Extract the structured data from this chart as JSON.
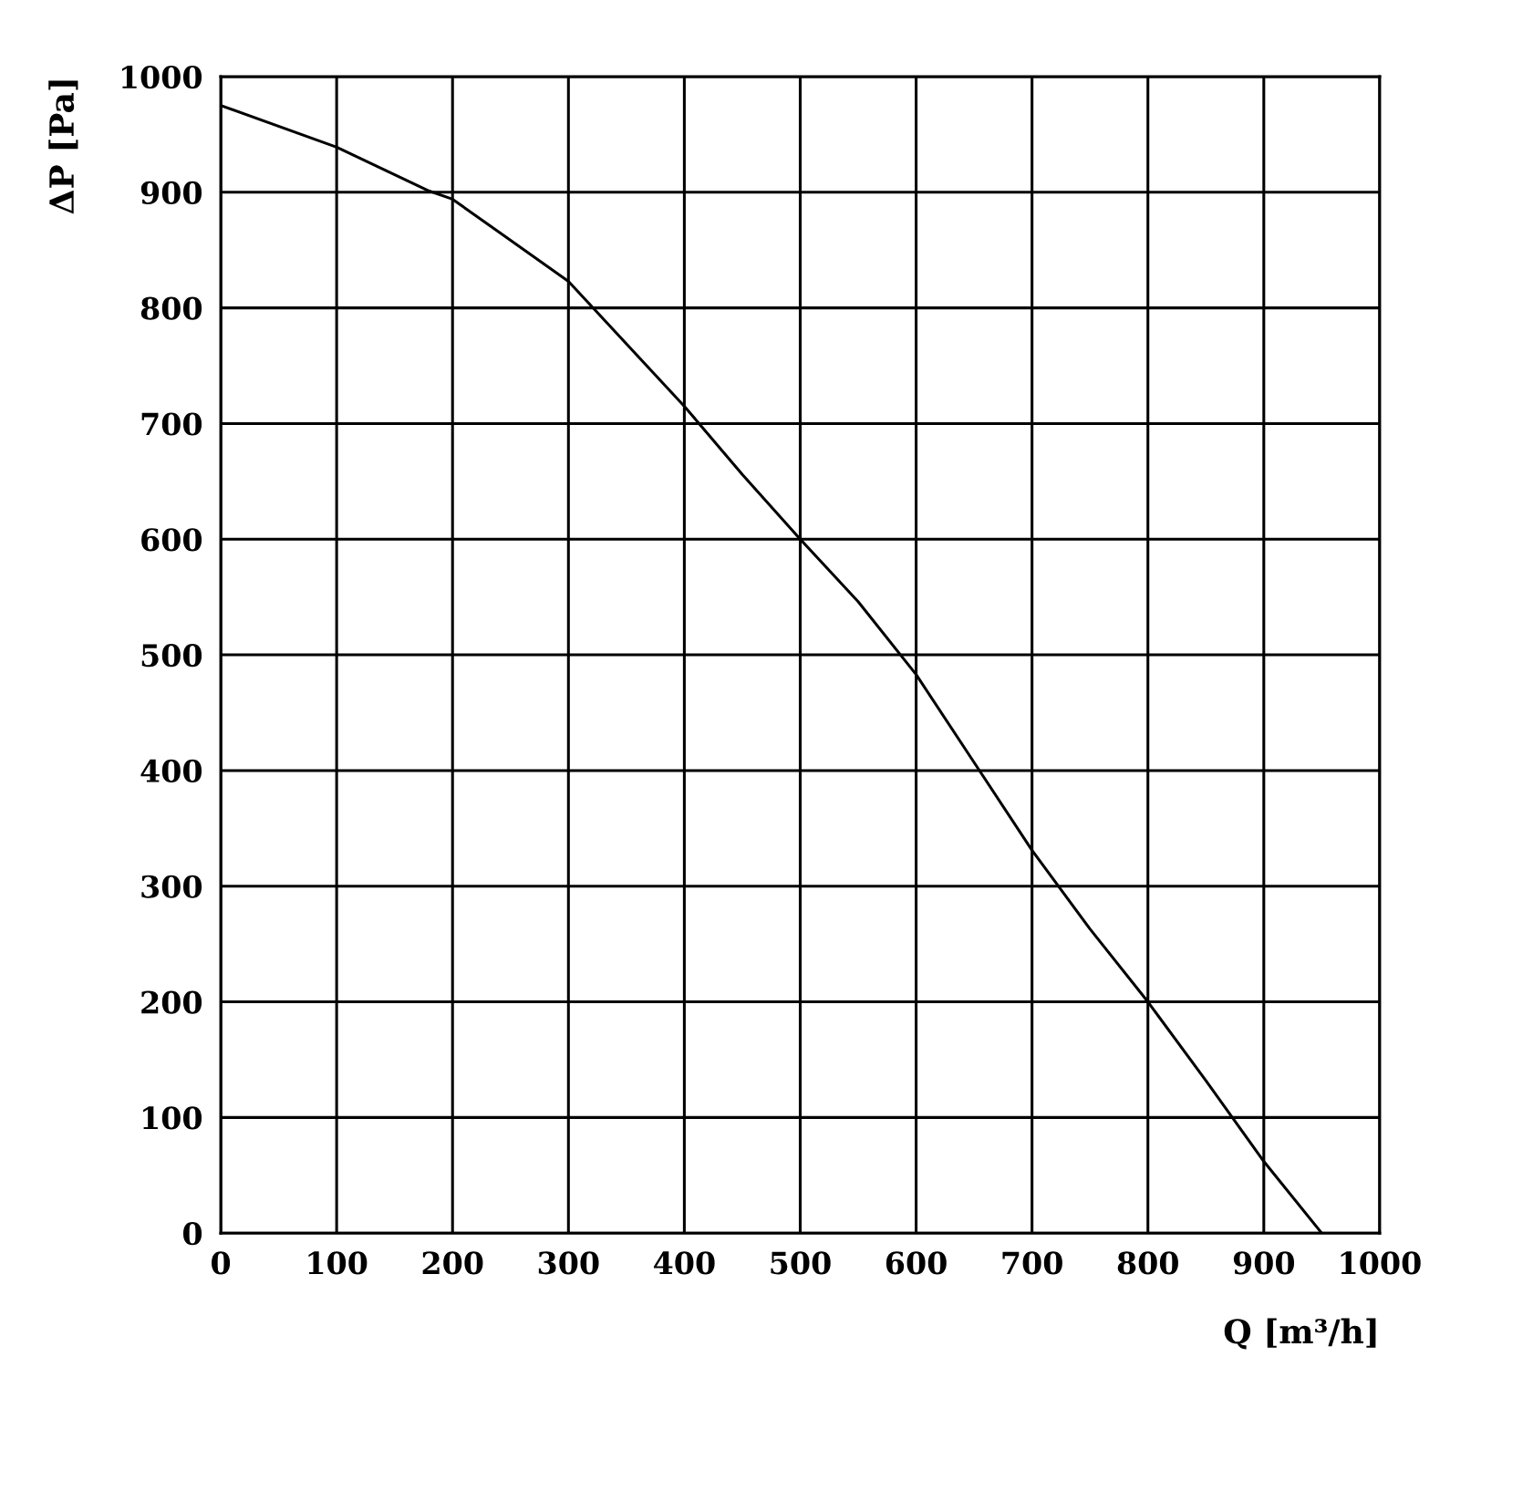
{
  "chart_data": {
    "type": "line",
    "xlabel": "Q [m³/h]",
    "ylabel": "ΔP [Pa]",
    "x": [
      0,
      100,
      180,
      200,
      300,
      400,
      450,
      500,
      550,
      600,
      650,
      700,
      750,
      800,
      850,
      900,
      950
    ],
    "series": [
      {
        "color": "#000000",
        "values": [
          975,
          939,
          901,
          894,
          823,
          715,
          656,
          600,
          546,
          483,
          407,
          331,
          263,
          200,
          132,
          62,
          0
        ]
      }
    ],
    "xlim": [
      0,
      1000
    ],
    "ylim": [
      0,
      1000
    ],
    "xticks": [
      0,
      100,
      200,
      300,
      400,
      500,
      600,
      700,
      800,
      900,
      1000
    ],
    "yticks": [
      0,
      100,
      200,
      300,
      400,
      500,
      600,
      700,
      800,
      900,
      1000
    ],
    "grid": true,
    "legend": false,
    "marker": "none",
    "line_style": "solid"
  }
}
